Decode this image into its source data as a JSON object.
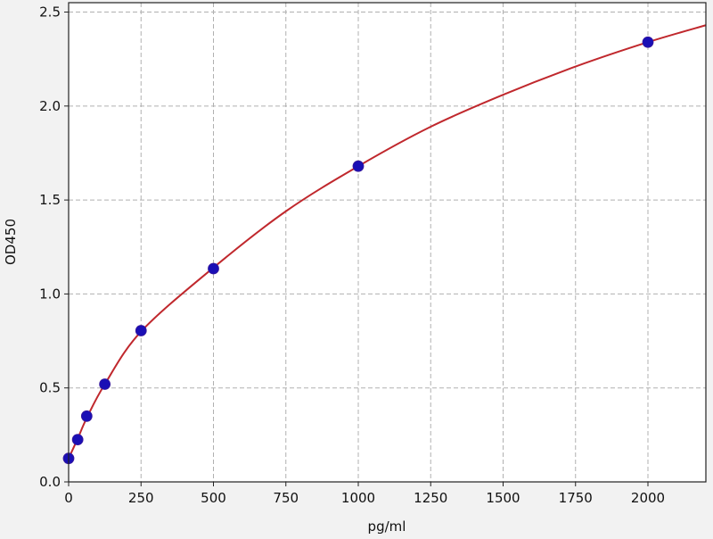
{
  "chart_data": {
    "type": "scatter",
    "title": "",
    "xlabel": "pg/ml",
    "ylabel": "OD450",
    "xlim": [
      0,
      2200
    ],
    "ylim": [
      0,
      2.55
    ],
    "x_ticks": [
      0,
      250,
      500,
      750,
      1000,
      1250,
      1500,
      1750,
      2000
    ],
    "y_ticks": [
      0.0,
      0.5,
      1.0,
      1.5,
      2.0,
      2.5
    ],
    "x_tick_labels": [
      "0",
      "250",
      "500",
      "750",
      "1000",
      "1250",
      "1500",
      "1750",
      "2000"
    ],
    "y_tick_labels": [
      "0.0",
      "0.5",
      "1.0",
      "1.5",
      "2.0",
      "2.5"
    ],
    "grid": true,
    "series": [
      {
        "type": "scatter",
        "color": "#1a0fb5",
        "x": [
          0,
          31.25,
          62.5,
          125,
          250,
          500,
          1000,
          2000
        ],
        "y": [
          0.125,
          0.225,
          0.35,
          0.52,
          0.805,
          1.135,
          1.68,
          2.34
        ]
      },
      {
        "type": "line",
        "color": "#c0282d",
        "x": [
          0,
          31.25,
          62.5,
          125,
          250,
          500,
          750,
          1000,
          1250,
          1500,
          1750,
          2000,
          2200
        ],
        "y": [
          0.125,
          0.23,
          0.34,
          0.52,
          0.8,
          1.14,
          1.44,
          1.68,
          1.89,
          2.06,
          2.21,
          2.34,
          2.43
        ]
      }
    ]
  }
}
